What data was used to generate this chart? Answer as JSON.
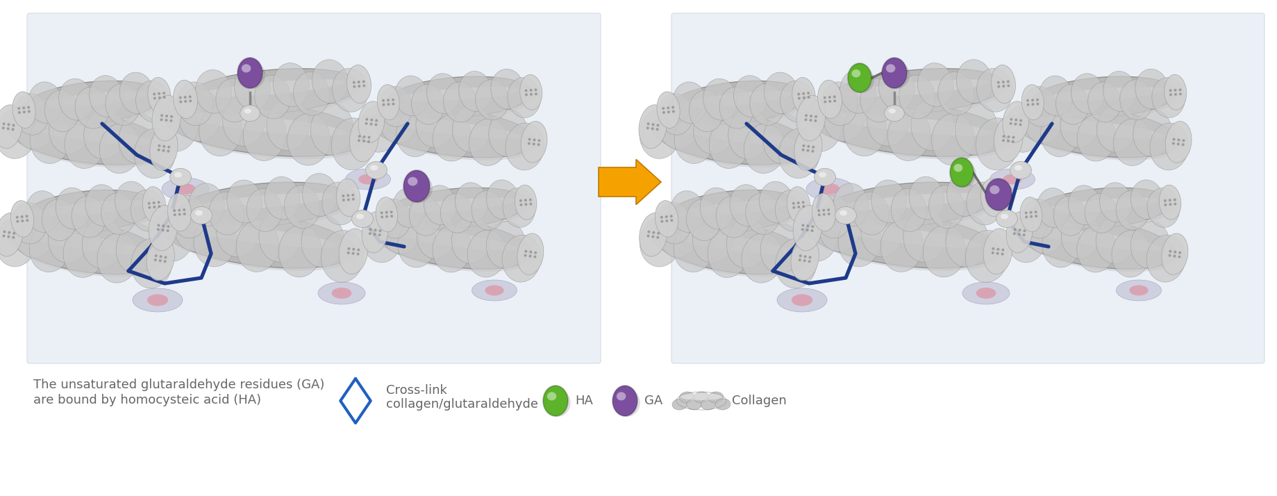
{
  "bg_color": "#ffffff",
  "panel_bg": "#EBF0F7",
  "crosslink_color": "#1E3A8A",
  "ha_color": "#5DB32A",
  "ga_color": "#7B4F9E",
  "arrow_color": "#F5A200",
  "text_color": "#666666",
  "legend": {
    "desc_line1": "The unsaturated glutaraldehyde residues (GA)",
    "desc_line2": "are bound by homocysteic acid (HA)",
    "crosslink_label1": "Cross-link",
    "crosslink_label2": "collagen/glutaraldehyde",
    "ha_label": "HA",
    "ga_label": "GA",
    "collagen_label": "Collagen"
  },
  "font_size": 13
}
